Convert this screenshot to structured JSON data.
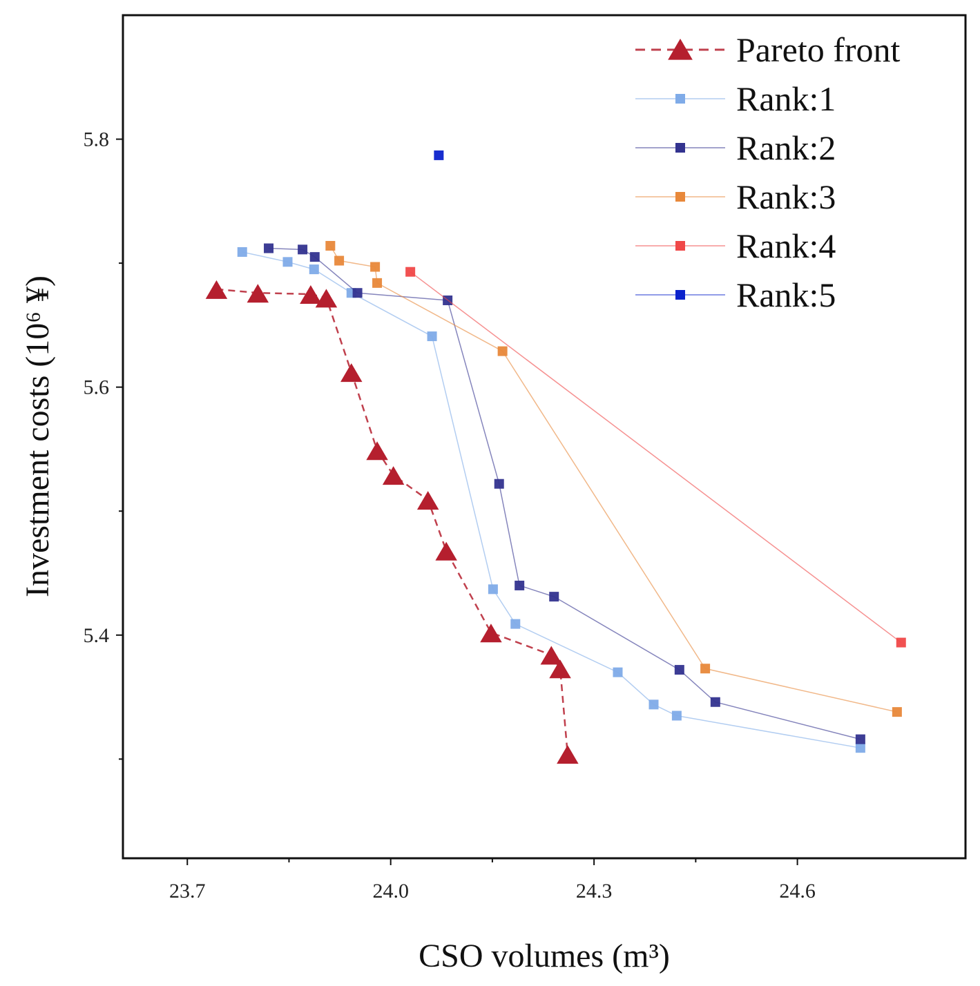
{
  "chart_data": {
    "type": "scatter",
    "title": "",
    "xlabel": "CSO volumes (m³)",
    "ylabel": "Investment costs (10⁶ ¥)",
    "xlim": [
      23.605,
      24.848
    ],
    "ylim": [
      5.22,
      5.9
    ],
    "xticks": [
      23.7,
      24.0,
      24.3,
      24.6
    ],
    "xtick_labels": [
      "23.7",
      "24.0",
      "24.3",
      "24.6"
    ],
    "xminor": [
      23.85,
      24.15,
      24.45
    ],
    "yticks": [
      5.4,
      5.6,
      5.8
    ],
    "ytick_labels": [
      "5.4",
      "5.6",
      "5.8"
    ],
    "yminor": [
      5.3,
      5.5,
      5.7
    ],
    "grid": false,
    "legend_position": "top-right",
    "series": [
      {
        "name": "Pareto front",
        "color": "#b51f2e",
        "marker": "triangle",
        "line": "dashed",
        "x": [
          23.743,
          23.804,
          23.882,
          23.905,
          23.942,
          23.98,
          24.004,
          24.055,
          24.082,
          24.148,
          24.237,
          24.25,
          24.261
        ],
        "y": [
          5.679,
          5.676,
          5.675,
          5.672,
          5.612,
          5.549,
          5.529,
          5.509,
          5.468,
          5.402,
          5.384,
          5.373,
          5.304
        ]
      },
      {
        "name": "Rank:1",
        "color": "#7fabe8",
        "marker": "square",
        "line": "solid",
        "x": [
          23.781,
          23.848,
          23.887,
          23.942,
          24.061,
          24.151,
          24.184,
          24.335,
          24.388,
          24.422,
          24.693
        ],
        "y": [
          5.709,
          5.701,
          5.695,
          5.676,
          5.641,
          5.437,
          5.409,
          5.37,
          5.344,
          5.335,
          5.309
        ]
      },
      {
        "name": "Rank:2",
        "color": "#33338f",
        "marker": "square",
        "line": "solid",
        "x": [
          23.82,
          23.87,
          23.888,
          23.951,
          24.084,
          24.16,
          24.19,
          24.241,
          24.426,
          24.479,
          24.693
        ],
        "y": [
          5.712,
          5.711,
          5.705,
          5.676,
          5.67,
          5.522,
          5.44,
          5.431,
          5.372,
          5.346,
          5.316
        ]
      },
      {
        "name": "Rank:3",
        "color": "#e8883a",
        "marker": "square",
        "line": "solid",
        "x": [
          23.911,
          23.924,
          23.977,
          23.98,
          24.165,
          24.464,
          24.747
        ],
        "y": [
          5.714,
          5.702,
          5.697,
          5.684,
          5.629,
          5.373,
          5.338
        ]
      },
      {
        "name": "Rank:4",
        "color": "#f04848",
        "marker": "square",
        "line": "solid",
        "x": [
          24.029,
          24.753
        ],
        "y": [
          5.693,
          5.394
        ]
      },
      {
        "name": "Rank:5",
        "color": "#0b22cc",
        "marker": "square",
        "line": "solid",
        "x": [
          24.071
        ],
        "y": [
          5.787
        ]
      }
    ]
  }
}
